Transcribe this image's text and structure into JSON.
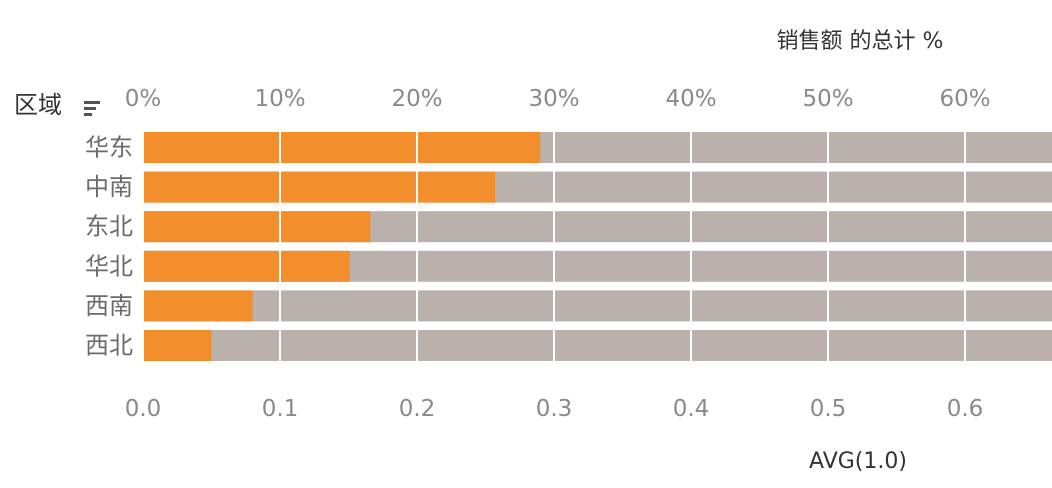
{
  "chart_data": {
    "type": "bar",
    "orientation": "horizontal",
    "row_field_label": "区域",
    "top_axis": {
      "title": "销售额 的总计 %",
      "tick_labels": [
        "0%",
        "10%",
        "20%",
        "30%",
        "40%",
        "50%",
        "60%"
      ],
      "range": [
        0,
        0.66
      ]
    },
    "bottom_axis": {
      "title": "AVG(1.0)",
      "tick_labels": [
        "0.0",
        "0.1",
        "0.2",
        "0.3",
        "0.4",
        "0.5",
        "0.6"
      ],
      "range": [
        0,
        0.66
      ]
    },
    "categories": [
      "华东",
      "中南",
      "东北",
      "华北",
      "西南",
      "西北"
    ],
    "series": [
      {
        "name": "销售额 的总计 %",
        "values": [
          0.29,
          0.257,
          0.166,
          0.151,
          0.08,
          0.05
        ],
        "color": "#f28e2b"
      },
      {
        "name": "AVG(1.0)",
        "values": [
          1.0,
          1.0,
          1.0,
          1.0,
          1.0,
          1.0
        ],
        "color": "#bab0ac"
      }
    ],
    "grid": true,
    "sort_indicator": "descending"
  }
}
